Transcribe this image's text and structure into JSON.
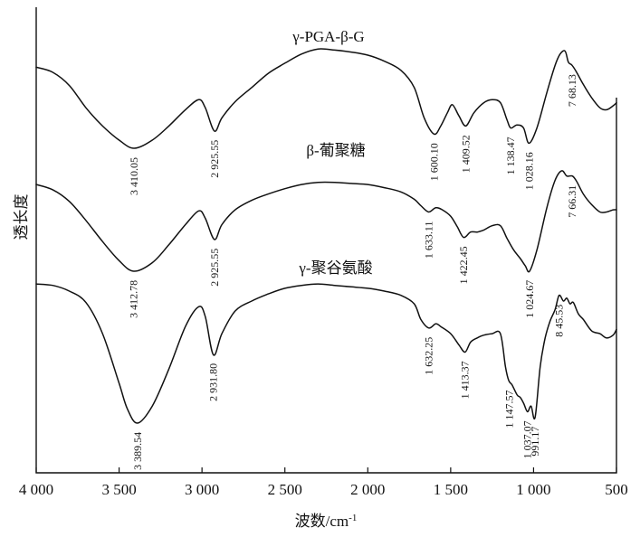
{
  "chart_data": {
    "type": "line",
    "title": "",
    "xlabel": "波数/cm",
    "xlabel_superscript": "-1",
    "ylabel": "透长度",
    "xlim": [
      4000,
      500
    ],
    "x_reversed": true,
    "grid": false,
    "legend": "none",
    "x_ticks": [
      {
        "value": 4000,
        "label": "4 000"
      },
      {
        "value": 3500,
        "label": "3 500"
      },
      {
        "value": 3000,
        "label": "3 000"
      },
      {
        "value": 2500,
        "label": "2 500"
      },
      {
        "value": 2000,
        "label": "2 000"
      },
      {
        "value": 1500,
        "label": "1 500"
      },
      {
        "value": 1000,
        "label": "1 000"
      },
      {
        "value": 500,
        "label": "500"
      }
    ],
    "series": [
      {
        "name": "γ-PGA-β-G",
        "points": [
          [
            4000,
            0.8
          ],
          [
            3900,
            0.75
          ],
          [
            3800,
            0.62
          ],
          [
            3700,
            0.4
          ],
          [
            3600,
            0.22
          ],
          [
            3500,
            0.08
          ],
          [
            3410,
            0.0
          ],
          [
            3300,
            0.08
          ],
          [
            3200,
            0.22
          ],
          [
            3100,
            0.38
          ],
          [
            3020,
            0.48
          ],
          [
            2980,
            0.4
          ],
          [
            2925,
            0.17
          ],
          [
            2880,
            0.3
          ],
          [
            2800,
            0.46
          ],
          [
            2700,
            0.6
          ],
          [
            2600,
            0.74
          ],
          [
            2500,
            0.84
          ],
          [
            2400,
            0.93
          ],
          [
            2300,
            0.98
          ],
          [
            2200,
            0.97
          ],
          [
            2100,
            0.95
          ],
          [
            2000,
            0.92
          ],
          [
            1900,
            0.86
          ],
          [
            1800,
            0.77
          ],
          [
            1720,
            0.6
          ],
          [
            1660,
            0.3
          ],
          [
            1600,
            0.14
          ],
          [
            1560,
            0.22
          ],
          [
            1520,
            0.35
          ],
          [
            1490,
            0.43
          ],
          [
            1450,
            0.32
          ],
          [
            1409,
            0.22
          ],
          [
            1360,
            0.35
          ],
          [
            1300,
            0.45
          ],
          [
            1250,
            0.48
          ],
          [
            1200,
            0.45
          ],
          [
            1160,
            0.28
          ],
          [
            1138,
            0.2
          ],
          [
            1100,
            0.23
          ],
          [
            1060,
            0.2
          ],
          [
            1028,
            0.05
          ],
          [
            980,
            0.2
          ],
          [
            920,
            0.55
          ],
          [
            870,
            0.82
          ],
          [
            840,
            0.93
          ],
          [
            810,
            0.96
          ],
          [
            790,
            0.85
          ],
          [
            768,
            0.82
          ],
          [
            740,
            0.75
          ],
          [
            700,
            0.63
          ],
          [
            650,
            0.5
          ],
          [
            600,
            0.4
          ],
          [
            560,
            0.38
          ],
          [
            520,
            0.42
          ],
          [
            500,
            0.45
          ]
        ],
        "peaks": [
          {
            "x": 3410.05,
            "label": "3 410.05"
          },
          {
            "x": 2925.55,
            "label": "2 925.55"
          },
          {
            "x": 1600.1,
            "label": "1 600.10"
          },
          {
            "x": 1409.52,
            "label": "1 409.52"
          },
          {
            "x": 1138.47,
            "label": "1 138.47"
          },
          {
            "x": 1028.16,
            "label": "1 028.16"
          },
          {
            "x": 768.13,
            "label": "7 68.13"
          }
        ]
      },
      {
        "name": "β-葡聚糖",
        "points": [
          [
            4000,
            0.82
          ],
          [
            3900,
            0.77
          ],
          [
            3800,
            0.66
          ],
          [
            3700,
            0.48
          ],
          [
            3600,
            0.28
          ],
          [
            3500,
            0.1
          ],
          [
            3412,
            0.0
          ],
          [
            3300,
            0.08
          ],
          [
            3200,
            0.25
          ],
          [
            3100,
            0.44
          ],
          [
            3020,
            0.57
          ],
          [
            2980,
            0.5
          ],
          [
            2925,
            0.3
          ],
          [
            2880,
            0.44
          ],
          [
            2800,
            0.58
          ],
          [
            2700,
            0.67
          ],
          [
            2600,
            0.73
          ],
          [
            2500,
            0.78
          ],
          [
            2400,
            0.82
          ],
          [
            2300,
            0.84
          ],
          [
            2200,
            0.84
          ],
          [
            2100,
            0.83
          ],
          [
            2000,
            0.82
          ],
          [
            1900,
            0.79
          ],
          [
            1800,
            0.75
          ],
          [
            1720,
            0.68
          ],
          [
            1680,
            0.62
          ],
          [
            1633,
            0.56
          ],
          [
            1590,
            0.6
          ],
          [
            1550,
            0.58
          ],
          [
            1500,
            0.52
          ],
          [
            1460,
            0.42
          ],
          [
            1422,
            0.32
          ],
          [
            1380,
            0.37
          ],
          [
            1340,
            0.37
          ],
          [
            1300,
            0.39
          ],
          [
            1250,
            0.43
          ],
          [
            1200,
            0.43
          ],
          [
            1160,
            0.31
          ],
          [
            1120,
            0.2
          ],
          [
            1080,
            0.12
          ],
          [
            1050,
            0.05
          ],
          [
            1024,
            0.0
          ],
          [
            980,
            0.2
          ],
          [
            920,
            0.6
          ],
          [
            870,
            0.86
          ],
          [
            830,
            0.95
          ],
          [
            800,
            0.9
          ],
          [
            766,
            0.9
          ],
          [
            740,
            0.85
          ],
          [
            700,
            0.73
          ],
          [
            650,
            0.63
          ],
          [
            600,
            0.56
          ],
          [
            560,
            0.56
          ],
          [
            520,
            0.58
          ],
          [
            500,
            0.58
          ]
        ],
        "peaks": [
          {
            "x": 3412.78,
            "label": "3 412.78"
          },
          {
            "x": 2925.55,
            "label": "2 925.55"
          },
          {
            "x": 1633.11,
            "label": "1 633.11"
          },
          {
            "x": 1422.45,
            "label": "1 422.45"
          },
          {
            "x": 1024.67,
            "label": "1 024.67"
          },
          {
            "x": 766.31,
            "label": "7 66.31"
          }
        ]
      },
      {
        "name": "γ-聚谷氨酸",
        "points": [
          [
            4000,
            0.98
          ],
          [
            3900,
            0.97
          ],
          [
            3800,
            0.93
          ],
          [
            3700,
            0.85
          ],
          [
            3600,
            0.63
          ],
          [
            3500,
            0.28
          ],
          [
            3450,
            0.1
          ],
          [
            3389,
            0.0
          ],
          [
            3300,
            0.12
          ],
          [
            3200,
            0.38
          ],
          [
            3100,
            0.68
          ],
          [
            3020,
            0.82
          ],
          [
            2980,
            0.75
          ],
          [
            2931,
            0.48
          ],
          [
            2880,
            0.63
          ],
          [
            2800,
            0.79
          ],
          [
            2700,
            0.86
          ],
          [
            2600,
            0.91
          ],
          [
            2500,
            0.95
          ],
          [
            2400,
            0.97
          ],
          [
            2300,
            0.98
          ],
          [
            2200,
            0.97
          ],
          [
            2100,
            0.96
          ],
          [
            2000,
            0.95
          ],
          [
            1900,
            0.93
          ],
          [
            1800,
            0.9
          ],
          [
            1720,
            0.84
          ],
          [
            1680,
            0.73
          ],
          [
            1632,
            0.67
          ],
          [
            1590,
            0.7
          ],
          [
            1560,
            0.68
          ],
          [
            1500,
            0.63
          ],
          [
            1450,
            0.55
          ],
          [
            1413,
            0.5
          ],
          [
            1380,
            0.57
          ],
          [
            1340,
            0.6
          ],
          [
            1300,
            0.62
          ],
          [
            1250,
            0.63
          ],
          [
            1200,
            0.63
          ],
          [
            1170,
            0.4
          ],
          [
            1150,
            0.3
          ],
          [
            1130,
            0.27
          ],
          [
            1100,
            0.2
          ],
          [
            1080,
            0.18
          ],
          [
            1060,
            0.14
          ],
          [
            1037,
            0.08
          ],
          [
            1015,
            0.12
          ],
          [
            991,
            0.04
          ],
          [
            960,
            0.4
          ],
          [
            930,
            0.6
          ],
          [
            900,
            0.72
          ],
          [
            870,
            0.8
          ],
          [
            846,
            0.9
          ],
          [
            820,
            0.86
          ],
          [
            800,
            0.88
          ],
          [
            780,
            0.84
          ],
          [
            760,
            0.85
          ],
          [
            730,
            0.77
          ],
          [
            700,
            0.73
          ],
          [
            650,
            0.65
          ],
          [
            600,
            0.63
          ],
          [
            560,
            0.6
          ],
          [
            520,
            0.62
          ],
          [
            500,
            0.66
          ]
        ],
        "peaks": [
          {
            "x": 3389.54,
            "label": "3 389.54"
          },
          {
            "x": 2931.8,
            "label": "2 931.80"
          },
          {
            "x": 1632.25,
            "label": "1 632.25"
          },
          {
            "x": 1413.37,
            "label": "1 413.37"
          },
          {
            "x": 1147.57,
            "label": "1 147.57"
          },
          {
            "x": 1037.07,
            "label": "1 037.07"
          },
          {
            "x": 991.17,
            "label": "991.17"
          },
          {
            "x": 845.53,
            "label": "8 45.53"
          }
        ]
      }
    ]
  }
}
